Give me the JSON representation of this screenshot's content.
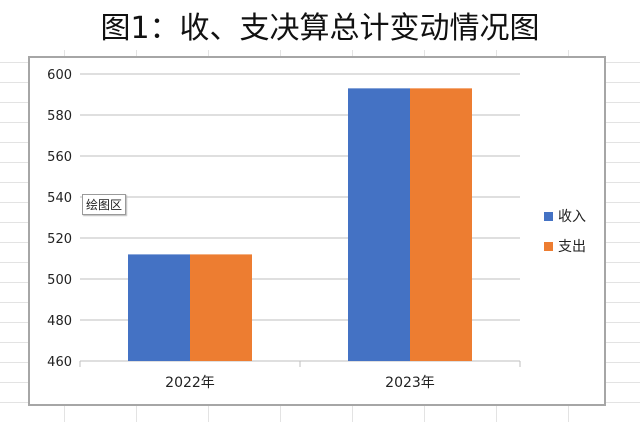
{
  "title": "图1：收、支决算总计变动情况图",
  "tooltip": "绘图区",
  "colors": {
    "income": "#4472C4",
    "expense": "#ED7D31",
    "grid": "#bfbfbf"
  },
  "chart_data": {
    "type": "bar",
    "categories": [
      "2022年",
      "2023年"
    ],
    "series": [
      {
        "name": "收入",
        "values": [
          512,
          593
        ]
      },
      {
        "name": "支出",
        "values": [
          512,
          593
        ]
      }
    ],
    "ylim": [
      460,
      600
    ],
    "yticks": [
      460,
      480,
      500,
      520,
      540,
      560,
      580,
      600
    ],
    "grid": true,
    "legend": "right"
  }
}
